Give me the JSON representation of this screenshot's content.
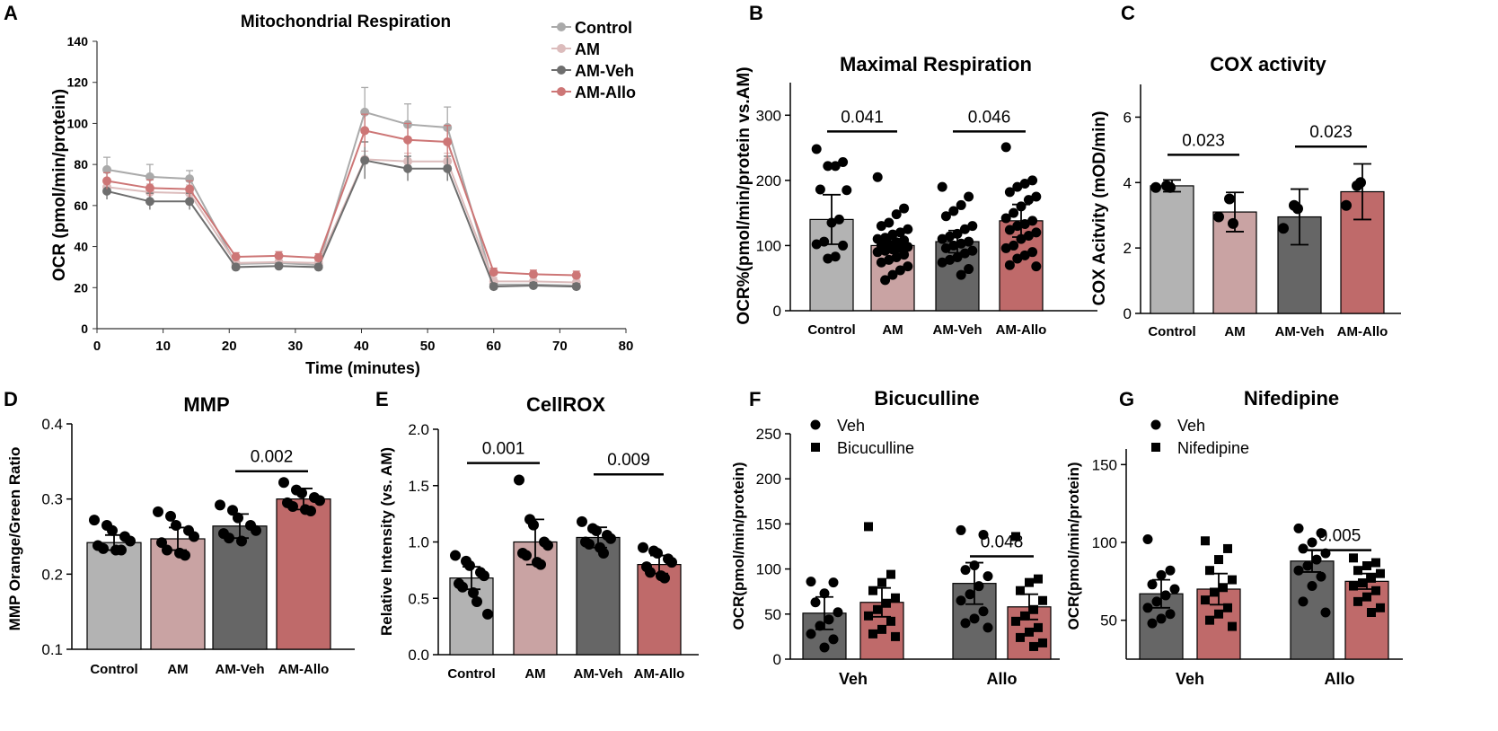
{
  "colors": {
    "control": "#b3b3b3",
    "am": "#c9a3a3",
    "amveh": "#666666",
    "amallo": "#bf6a6a",
    "lineControl": "#aaaaaa",
    "lineAM": "#dcbcbc",
    "lineAMVeh": "#6e6e6e",
    "lineAMAllo": "#cd7676"
  },
  "panel_letters": [
    "A",
    "B",
    "C",
    "D",
    "E",
    "F",
    "G"
  ],
  "chart_data": [
    {
      "id": "A",
      "type": "line",
      "title": "Mitochondrial Respiration",
      "xlabel": "Time (minutes)",
      "ylabel": "OCR (pmol/min/protein)",
      "xlim": [
        0,
        80
      ],
      "ylim": [
        0,
        140
      ],
      "xticks": [
        "0",
        "10",
        "20",
        "30",
        "40",
        "50",
        "60",
        "70",
        "80"
      ],
      "yticks": [
        "0",
        "20",
        "40",
        "60",
        "80",
        "100",
        "120",
        "140"
      ],
      "x": [
        1.5,
        8,
        14,
        21,
        27.5,
        33.5,
        40.5,
        47,
        53,
        60,
        66,
        72.5
      ],
      "series": [
        {
          "name": "Control",
          "color": "lineControl",
          "values": [
            77.5,
            74,
            73,
            31.5,
            32,
            31,
            105.5,
            99.5,
            98,
            21.5,
            21.5,
            21
          ],
          "errors": [
            6,
            6,
            4,
            1.5,
            1.5,
            1.5,
            12,
            10,
            10,
            1.5,
            1.5,
            1.5
          ]
        },
        {
          "name": "AM",
          "color": "lineAM",
          "values": [
            69,
            66.5,
            66,
            32,
            32.5,
            32,
            82.5,
            81.5,
            81.5,
            23,
            23,
            22.5
          ],
          "errors": [
            4,
            4,
            4,
            2,
            2,
            2,
            4,
            4,
            4,
            2,
            2,
            2
          ]
        },
        {
          "name": "AM-Veh",
          "color": "lineAMVeh",
          "values": [
            67,
            62,
            62,
            30,
            30.5,
            30,
            82,
            78,
            78,
            20.5,
            21,
            20.5
          ],
          "errors": [
            4,
            4,
            4,
            1.5,
            1.5,
            1.5,
            9,
            6,
            6,
            1.5,
            1.5,
            1.5
          ]
        },
        {
          "name": "AM-Allo",
          "color": "lineAMAllo",
          "values": [
            72,
            68.5,
            68,
            35,
            35.5,
            34.5,
            96.5,
            92,
            91,
            27.5,
            26.5,
            26
          ],
          "errors": [
            4,
            4,
            4,
            2,
            2,
            2,
            8,
            8,
            8,
            2,
            2,
            2
          ]
        }
      ],
      "legend": "top-right"
    },
    {
      "id": "B",
      "type": "bar",
      "title": "Maximal Respiration",
      "ylabel": "OCR%(pmol/min/protein vs.AM)",
      "ylim": [
        0,
        350
      ],
      "yticks": [
        "0",
        "100",
        "200",
        "300"
      ],
      "categories": [
        "Control",
        "AM",
        "AM-Veh",
        "AM-Allo"
      ],
      "values": [
        140,
        100,
        106,
        138
      ],
      "errors": [
        38,
        10,
        17,
        25
      ],
      "bar_colors": [
        "control",
        "am",
        "amveh",
        "amallo"
      ],
      "comparisons": [
        {
          "from": 0,
          "to": 1,
          "label": "0.041",
          "y": 275
        },
        {
          "from": 2,
          "to": 3,
          "label": "0.046",
          "y": 275
        }
      ]
    },
    {
      "id": "C",
      "type": "bar",
      "title": "COX activity",
      "ylabel": "COX Acitvity (mOD/min)",
      "ylim": [
        0,
        7
      ],
      "yticks": [
        "0",
        "2",
        "4",
        "6"
      ],
      "categories": [
        "Control",
        "AM",
        "AM-Veh",
        "AM-Allo"
      ],
      "values": [
        3.9,
        3.1,
        2.95,
        3.72
      ],
      "errors": [
        0.18,
        0.6,
        0.85,
        0.85
      ],
      "points": [
        [
          3.85,
          3.9,
          3.85
        ],
        [
          2.95,
          3.5,
          2.75
        ],
        [
          2.6,
          3.3,
          3.2
        ],
        [
          3.3,
          3.9,
          4.0
        ]
      ],
      "bar_colors": [
        "control",
        "am",
        "amveh",
        "amallo"
      ],
      "comparisons": [
        {
          "from": 0,
          "to": 1,
          "label": "0.023",
          "y": 4.85
        },
        {
          "from": 2,
          "to": 3,
          "label": "0.023",
          "y": 5.1
        }
      ]
    },
    {
      "id": "D",
      "type": "bar",
      "title": "MMP",
      "ylabel": "MMP Orange/Green Ratio",
      "ylim": [
        0.1,
        0.4
      ],
      "yticks": [
        "0.1",
        "0.2",
        "0.3",
        "0.4"
      ],
      "categories": [
        "Control",
        "AM",
        "AM-Veh",
        "AM-Allo"
      ],
      "values": [
        0.242,
        0.247,
        0.264,
        0.3
      ],
      "errors": [
        0.01,
        0.015,
        0.016,
        0.014
      ],
      "points": [
        [
          0.272,
          0.265,
          0.258,
          0.25,
          0.244,
          0.238,
          0.234,
          0.232,
          0.232
        ],
        [
          0.283,
          0.277,
          0.265,
          0.258,
          0.25,
          0.242,
          0.232,
          0.228,
          0.225
        ],
        [
          0.292,
          0.285,
          0.275,
          0.265,
          0.258,
          0.254,
          0.248,
          0.244
        ],
        [
          0.322,
          0.312,
          0.308,
          0.302,
          0.298,
          0.295,
          0.29,
          0.286,
          0.284
        ]
      ],
      "bar_colors": [
        "control",
        "am",
        "amveh",
        "amallo"
      ],
      "comparisons": [
        {
          "from": 2,
          "to": 3,
          "label": "0.002",
          "y": 0.337
        }
      ]
    },
    {
      "id": "E",
      "type": "bar",
      "title": "CellROX",
      "ylabel": "Relative Intensity (vs. AM)",
      "ylim": [
        0,
        2.0
      ],
      "yticks": [
        "0.0",
        "0.5",
        "1.0",
        "1.5",
        "2.0"
      ],
      "categories": [
        "Control",
        "AM",
        "AM-Veh",
        "AM-Allo"
      ],
      "values": [
        0.68,
        1.0,
        1.04,
        0.8
      ],
      "errors": [
        0.1,
        0.2,
        0.09,
        0.08
      ],
      "points": [
        [
          0.88,
          0.83,
          0.79,
          0.73,
          0.7,
          0.63,
          0.6,
          0.55,
          0.47,
          0.36
        ],
        [
          1.55,
          1.2,
          1.15,
          1.0,
          0.97,
          0.9,
          0.88,
          0.82,
          0.8
        ],
        [
          1.18,
          1.12,
          1.1,
          1.06,
          1.03,
          1.0,
          0.98,
          0.95,
          0.9
        ],
        [
          0.95,
          0.92,
          0.9,
          0.85,
          0.82,
          0.78,
          0.73,
          0.7,
          0.68
        ]
      ],
      "bar_colors": [
        "control",
        "am",
        "amveh",
        "amallo"
      ],
      "comparisons": [
        {
          "from": 0,
          "to": 1,
          "label": "0.001",
          "y": 1.7
        },
        {
          "from": 2,
          "to": 3,
          "label": "0.009",
          "y": 1.6
        }
      ]
    },
    {
      "id": "F",
      "type": "bar",
      "title": "Bicuculline",
      "ylabel": "OCR(pmol/min/protein)",
      "ylim": [
        0,
        250
      ],
      "yticks": [
        "0",
        "50",
        "100",
        "150",
        "200",
        "250"
      ],
      "categories": [
        "Veh",
        "Allo"
      ],
      "legend_labels": [
        "Veh",
        "Bicuculline"
      ],
      "values": [
        [
          51,
          63
        ],
        [
          84,
          58
        ]
      ],
      "errors": [
        [
          18,
          16
        ],
        [
          23,
          14
        ]
      ],
      "bar_colors": [
        "amveh",
        "amallo"
      ],
      "points": [
        [
          [
            86,
            85,
            73,
            63,
            52,
            44,
            37,
            28,
            22,
            13
          ],
          [
            147,
            94,
            85,
            76,
            68,
            62,
            55,
            48,
            42,
            33,
            28,
            25
          ]
        ],
        [
          [
            143,
            138,
            104,
            99,
            92,
            81,
            72,
            65,
            53,
            45,
            40,
            35
          ],
          [
            136,
            89,
            85,
            76,
            65,
            55,
            48,
            42,
            35,
            30,
            24,
            18,
            14
          ]
        ]
      ],
      "comparisons": [
        {
          "group": 1,
          "label": "0.048",
          "y": 114
        }
      ]
    },
    {
      "id": "G",
      "type": "bar",
      "title": "Nifedipine",
      "ylabel": "OCR(pmol/min/protein)",
      "ylim": [
        25,
        160
      ],
      "yticks": [
        "50",
        "100",
        "150"
      ],
      "categories": [
        "Veh",
        "Allo"
      ],
      "legend_labels": [
        "Veh",
        "Nifedipine"
      ],
      "values": [
        [
          67,
          70
        ],
        [
          88,
          75
        ]
      ],
      "errors": [
        [
          9,
          10
        ],
        [
          7,
          5
        ]
      ],
      "bar_colors": [
        "amveh",
        "amallo"
      ],
      "points": [
        [
          [
            102,
            82,
            79,
            73,
            70,
            66,
            62,
            58,
            54,
            51,
            48
          ],
          [
            101,
            96,
            89,
            82,
            76,
            71,
            68,
            63,
            58,
            54,
            50,
            46
          ]
        ],
        [
          [
            109,
            106,
            100,
            96,
            93,
            89,
            85,
            82,
            78,
            72,
            62,
            55
          ],
          [
            90,
            87,
            85,
            82,
            80,
            77,
            74,
            72,
            69,
            65,
            62,
            58,
            55
          ]
        ]
      ],
      "comparisons": [
        {
          "group": 1,
          "label": "0.005",
          "y": 95
        }
      ]
    }
  ]
}
